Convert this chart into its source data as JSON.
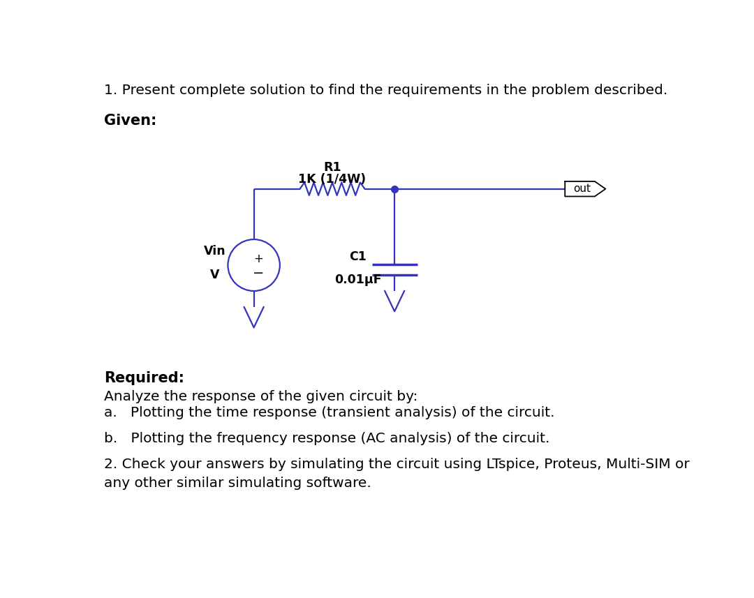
{
  "bg_color": "#ffffff",
  "circuit_color": "#3333bb",
  "text_color": "#000000",
  "line1": "1. Present complete solution to find the requirements in the problem described.",
  "given_label": "Given:",
  "required_label": "Required:",
  "required_text1": "Analyze the response of the given circuit by:",
  "required_text2a": "a.   Plotting the time response (transient analysis) of the circuit.",
  "required_text2b": "b.   Plotting the frequency response (AC analysis) of the circuit.",
  "line2": "2. Check your answers by simulating the circuit using LTspice, Proteus, Multi-SIM or",
  "line3": "any other similar simulating software.",
  "r1_label": "R1",
  "r1_value": "1K (1/4W)",
  "c1_label": "C1",
  "c1_value": "0.01μF",
  "vin_label": "Vin",
  "vin_value": "V",
  "out_label": "out",
  "font_size_body": 14.5,
  "font_size_circuit": 12.5,
  "font_size_bold": 15.0
}
